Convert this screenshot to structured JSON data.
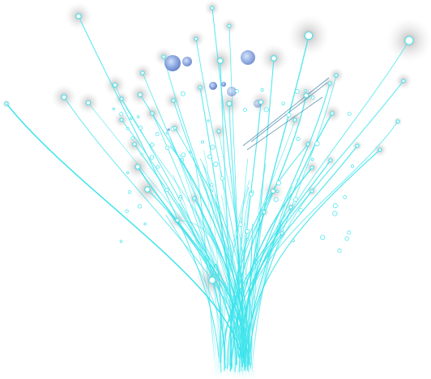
{
  "illustration": {
    "subject": "branching-network-tree",
    "colors": {
      "background": "#ffffff",
      "line": "#3fe4ec",
      "line_dark": "#1f6f9a",
      "halo": "#c9c9c9",
      "node_fill": "#ffffff",
      "bubble": "#6d8fd6",
      "bubble_light": "#a9c4ee"
    }
  }
}
